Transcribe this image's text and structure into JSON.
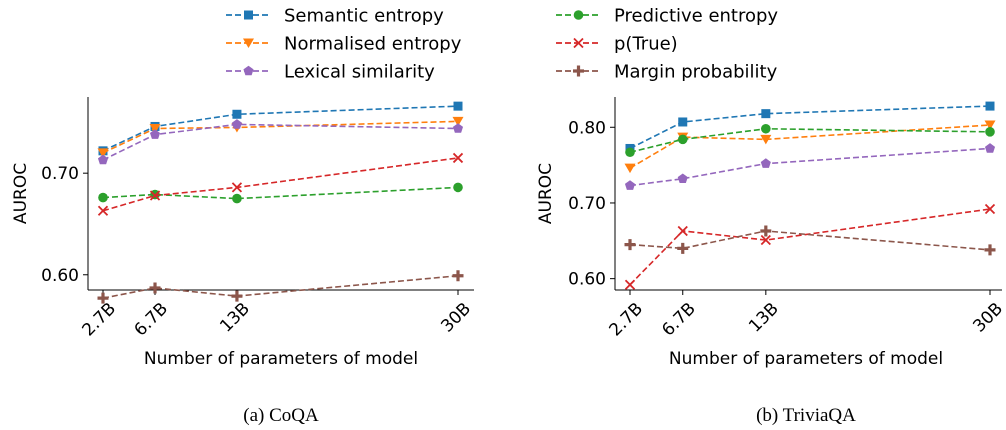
{
  "legend": [
    {
      "label": "Semantic entropy",
      "color": "#1f77b4",
      "marker": "square"
    },
    {
      "label": "Normalised entropy",
      "color": "#ff7f0e",
      "marker": "triangle-down"
    },
    {
      "label": "Lexical similarity",
      "color": "#9467bd",
      "marker": "pentagon"
    },
    {
      "label": "Predictive entropy",
      "color": "#2ca02c",
      "marker": "circle"
    },
    {
      "label": "p(True)",
      "color": "#d62728",
      "marker": "x"
    },
    {
      "label": "Margin probability",
      "color": "#8c564b",
      "marker": "plus"
    }
  ],
  "chart_data": [
    {
      "type": "line",
      "caption": "(a) CoQA",
      "xlabel": "Number of parameters of model",
      "ylabel": "AUROC",
      "x": [
        2.7,
        6.7,
        13,
        30
      ],
      "xtick_labels": [
        "2.7B",
        "6.7B",
        "13B",
        "30B"
      ],
      "yticks": [
        0.6,
        0.7
      ],
      "ytick_labels": [
        "0.60",
        "0.70"
      ],
      "ylim": [
        0.585,
        0.775
      ],
      "series": [
        {
          "name": "Semantic entropy",
          "values": [
            0.722,
            0.746,
            0.758,
            0.766
          ]
        },
        {
          "name": "Normalised entropy",
          "values": [
            0.72,
            0.744,
            0.745,
            0.751
          ]
        },
        {
          "name": "Lexical similarity",
          "values": [
            0.713,
            0.738,
            0.748,
            0.744
          ]
        },
        {
          "name": "Predictive entropy",
          "values": [
            0.676,
            0.679,
            0.675,
            0.686
          ]
        },
        {
          "name": "p(True)",
          "values": [
            0.663,
            0.678,
            0.686,
            0.715
          ]
        },
        {
          "name": "Margin probability",
          "values": [
            0.577,
            0.587,
            0.579,
            0.599
          ]
        }
      ]
    },
    {
      "type": "line",
      "caption": "(b) TriviaQA",
      "xlabel": "Number of parameters of model",
      "ylabel": "AUROC",
      "x": [
        2.7,
        6.7,
        13,
        30
      ],
      "xtick_labels": [
        "2.7B",
        "6.7B",
        "13B",
        "30B"
      ],
      "yticks": [
        0.6,
        0.7,
        0.8
      ],
      "ytick_labels": [
        "0.60",
        "0.70",
        "0.80"
      ],
      "ylim": [
        0.585,
        0.84
      ],
      "series": [
        {
          "name": "Semantic entropy",
          "values": [
            0.772,
            0.807,
            0.818,
            0.828
          ]
        },
        {
          "name": "Normalised entropy",
          "values": [
            0.746,
            0.787,
            0.784,
            0.803
          ]
        },
        {
          "name": "Lexical similarity",
          "values": [
            0.723,
            0.732,
            0.752,
            0.772
          ]
        },
        {
          "name": "Predictive entropy",
          "values": [
            0.767,
            0.784,
            0.798,
            0.794
          ]
        },
        {
          "name": "p(True)",
          "values": [
            0.592,
            0.663,
            0.651,
            0.692
          ]
        },
        {
          "name": "Margin probability",
          "values": [
            0.645,
            0.64,
            0.663,
            0.638
          ]
        }
      ]
    }
  ]
}
